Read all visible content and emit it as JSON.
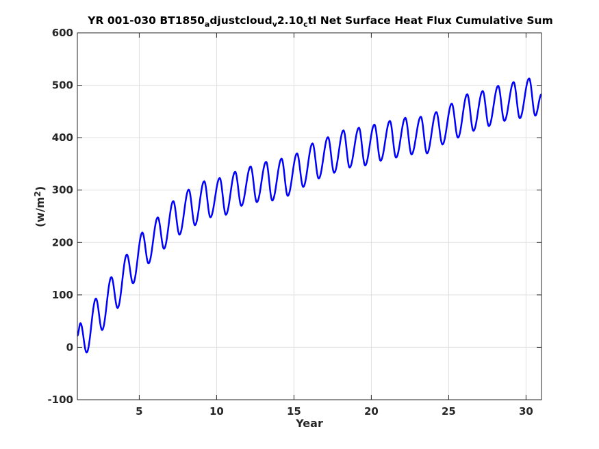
{
  "chart_data": {
    "type": "line",
    "title": {
      "parts": [
        {
          "text": "YR 001-030 BT1850",
          "sub": false
        },
        {
          "text": "a",
          "sub": true
        },
        {
          "text": "djustcloud",
          "sub": false
        },
        {
          "text": "v",
          "sub": true
        },
        {
          "text": "2.10",
          "sub": false
        },
        {
          "text": "c",
          "sub": true
        },
        {
          "text": "tl Net Surface Heat Flux  Cumulative Sum",
          "sub": false
        }
      ]
    },
    "xlabel": "Year",
    "ylabel": {
      "base": "(w/m",
      "sup": "2",
      "close": ")"
    },
    "xlim": [
      1,
      31
    ],
    "ylim": [
      -100,
      600
    ],
    "xticks": [
      5,
      10,
      15,
      20,
      25,
      30
    ],
    "yticks": [
      -100,
      0,
      100,
      200,
      300,
      400,
      500,
      600
    ],
    "grid": true,
    "series_color": "#0000ff",
    "series": [
      {
        "peaks": [
          [
            1.2,
            46
          ],
          [
            2.2,
            93
          ],
          [
            3.2,
            134
          ],
          [
            4.2,
            177
          ],
          [
            5.2,
            219
          ],
          [
            6.2,
            248
          ],
          [
            7.2,
            279
          ],
          [
            8.2,
            301
          ],
          [
            9.2,
            317
          ],
          [
            10.2,
            323
          ],
          [
            11.2,
            335
          ],
          [
            12.2,
            345
          ],
          [
            13.2,
            354
          ],
          [
            14.2,
            360
          ],
          [
            15.2,
            370
          ],
          [
            16.2,
            389
          ],
          [
            17.2,
            401
          ],
          [
            18.2,
            414
          ],
          [
            19.2,
            419
          ],
          [
            20.2,
            425
          ],
          [
            21.2,
            432
          ],
          [
            22.2,
            438
          ],
          [
            23.2,
            440
          ],
          [
            24.2,
            449
          ],
          [
            25.2,
            465
          ],
          [
            26.2,
            483
          ],
          [
            27.2,
            489
          ],
          [
            28.2,
            499
          ],
          [
            29.2,
            506
          ],
          [
            30.2,
            513
          ]
        ],
        "troughs": [
          [
            1,
            22
          ],
          [
            1.6,
            -10
          ],
          [
            2.6,
            33
          ],
          [
            3.6,
            75
          ],
          [
            4.6,
            122
          ],
          [
            5.6,
            160
          ],
          [
            6.6,
            188
          ],
          [
            7.6,
            215
          ],
          [
            8.6,
            233
          ],
          [
            9.6,
            248
          ],
          [
            10.6,
            253
          ],
          [
            11.6,
            270
          ],
          [
            12.6,
            277
          ],
          [
            13.6,
            280
          ],
          [
            14.6,
            289
          ],
          [
            15.6,
            306
          ],
          [
            16.6,
            322
          ],
          [
            17.6,
            333
          ],
          [
            18.6,
            343
          ],
          [
            19.6,
            347
          ],
          [
            20.6,
            356
          ],
          [
            21.6,
            362
          ],
          [
            22.6,
            368
          ],
          [
            23.6,
            370
          ],
          [
            24.6,
            387
          ],
          [
            25.6,
            400
          ],
          [
            26.6,
            413
          ],
          [
            27.6,
            422
          ],
          [
            28.6,
            432
          ],
          [
            29.6,
            437
          ],
          [
            30.6,
            442
          ],
          [
            31,
            483
          ]
        ]
      }
    ]
  }
}
